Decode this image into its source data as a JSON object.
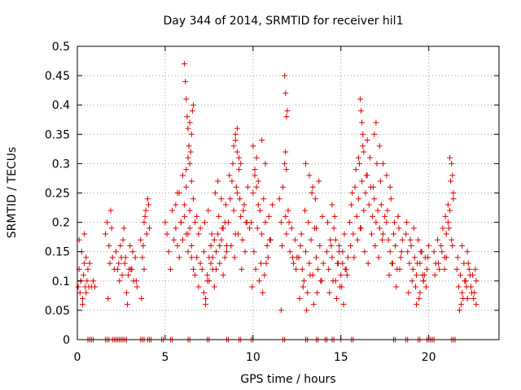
{
  "chart_data": {
    "type": "scatter",
    "title": "Day 344 of 2014, SRMTID for receiver hil1",
    "xlabel": "GPS time / hours",
    "ylabel": "SRMTID / TECUs",
    "xlim": [
      0,
      24
    ],
    "ylim": [
      0,
      0.5
    ],
    "xticks": [
      0,
      5,
      10,
      15,
      20
    ],
    "xtick_labels": [
      "0",
      "5",
      "10",
      "15",
      "20"
    ],
    "yticks": [
      0,
      0.05,
      0.1,
      0.15,
      0.2,
      0.25,
      0.3,
      0.35,
      0.4,
      0.45,
      0.5
    ],
    "ytick_labels": [
      "0",
      "0.05",
      "0.1",
      "0.15",
      "0.2",
      "0.25",
      "0.3",
      "0.35",
      "0.4",
      "0.45",
      "0.5"
    ],
    "grid": true,
    "marker": "+",
    "color": "#e00000",
    "series": [
      {
        "name": "SRMTID",
        "x": [
          0.05,
          0.1,
          0.15,
          0.2,
          0.25,
          0.3,
          0.35,
          0.4,
          0.45,
          0.5,
          0.55,
          0.6,
          0.65,
          0.7,
          0.8,
          0.9,
          1.0,
          0.1,
          0.2,
          0.3,
          0.4,
          0.5,
          1.6,
          1.7,
          1.8,
          1.9,
          2.0,
          2.1,
          1.75,
          1.85,
          1.95,
          2.2,
          2.3,
          2.4,
          2.5,
          2.6,
          2.7,
          2.8,
          2.9,
          3.0,
          3.1,
          3.2,
          3.3,
          3.4,
          2.35,
          2.55,
          2.75,
          2.95,
          3.15,
          3.35,
          2.45,
          2.65,
          2.85,
          3.05,
          3.6,
          3.7,
          3.8,
          3.9,
          4.0,
          4.1,
          3.75,
          3.85,
          3.95,
          4.05,
          3.65,
          3.8,
          5.0,
          5.1,
          5.2,
          5.3,
          5.4,
          5.5,
          5.6,
          5.7,
          5.8,
          5.9,
          6.0,
          6.1,
          6.2,
          6.3,
          6.4,
          6.5,
          6.6,
          6.7,
          6.8,
          6.9,
          7.0,
          6.1,
          6.15,
          6.2,
          6.25,
          6.3,
          6.35,
          6.4,
          6.45,
          6.5,
          6.55,
          6.6,
          6.2,
          6.3,
          6.4,
          6.5,
          5.6,
          5.8,
          6.0,
          6.2,
          6.4,
          6.6,
          6.8,
          7.0,
          5.7,
          5.9,
          6.1,
          6.3,
          6.5,
          6.7,
          6.9,
          7.1,
          7.2,
          7.3,
          7.4,
          7.5,
          7.6,
          7.7,
          7.8,
          7.9,
          8.0,
          8.1,
          8.2,
          8.3,
          8.4,
          8.5,
          7.25,
          7.45,
          7.65,
          7.85,
          8.05,
          8.25,
          8.45,
          7.2,
          7.4,
          7.6,
          7.8,
          8.0,
          8.2,
          8.4,
          7.3,
          7.5,
          7.7,
          7.9,
          8.1,
          8.3,
          8.5,
          8.6,
          8.7,
          8.8,
          8.9,
          9.0,
          9.1,
          9.2,
          9.3,
          9.4,
          9.5,
          9.6,
          9.7,
          9.8,
          8.65,
          8.85,
          9.05,
          9.25,
          9.45,
          9.65,
          8.75,
          8.95,
          9.15,
          9.35,
          9.55,
          8.9,
          9.0,
          9.1,
          9.2,
          9.3,
          9.0,
          9.1,
          9.9,
          10.0,
          10.1,
          10.2,
          10.3,
          10.4,
          10.5,
          10.6,
          10.7,
          10.8,
          10.9,
          11.0,
          11.1,
          10.05,
          10.25,
          10.45,
          10.65,
          10.85,
          10.0,
          10.1,
          10.2,
          10.3,
          10.5,
          10.7,
          9.95,
          10.15,
          10.35,
          10.55,
          10.75,
          10.95,
          11.5,
          11.6,
          11.7,
          11.8,
          11.9,
          12.0,
          12.1,
          12.2,
          12.3,
          12.4,
          12.5,
          11.65,
          11.85,
          12.05,
          12.25,
          12.45,
          11.8,
          11.85,
          11.9,
          11.95,
          11.85,
          11.9,
          11.6,
          12.6,
          12.7,
          12.8,
          12.9,
          13.0,
          13.1,
          13.2,
          13.3,
          13.4,
          13.5,
          13.6,
          13.7,
          13.8,
          13.9,
          14.0,
          12.75,
          12.95,
          13.15,
          13.35,
          13.55,
          13.75,
          13.95,
          12.65,
          12.85,
          13.05,
          13.25,
          13.45,
          13.65,
          13.85,
          13.0,
          13.2,
          13.4,
          13.6,
          14.2,
          14.3,
          14.4,
          14.5,
          14.6,
          14.7,
          14.8,
          14.9,
          15.0,
          15.1,
          15.2,
          15.3,
          15.4,
          14.25,
          14.45,
          14.65,
          14.85,
          15.05,
          15.25,
          14.35,
          14.55,
          14.75,
          14.95,
          15.15,
          15.35,
          14.5,
          14.7,
          14.9,
          15.1,
          15.5,
          15.6,
          15.7,
          15.8,
          15.9,
          16.0,
          16.1,
          16.2,
          16.3,
          16.4,
          16.5,
          16.6,
          16.7,
          16.8,
          16.9,
          17.0,
          17.1,
          17.2,
          17.3,
          17.4,
          17.5,
          15.55,
          15.75,
          15.95,
          16.15,
          16.35,
          16.55,
          16.75,
          16.95,
          17.15,
          17.35,
          15.65,
          15.85,
          16.05,
          16.25,
          16.45,
          16.65,
          16.85,
          17.05,
          17.25,
          16.1,
          16.15,
          16.2,
          16.25,
          16.3,
          16.0,
          16.5,
          16.9,
          17.0,
          17.2,
          17.4,
          17.6,
          17.8,
          17.6,
          17.7,
          17.8,
          17.9,
          18.0,
          18.1,
          18.2,
          18.3,
          18.4,
          18.5,
          17.65,
          17.85,
          18.05,
          18.25,
          18.45,
          17.75,
          17.95,
          18.15,
          18.35,
          18.7,
          18.8,
          18.9,
          19.0,
          19.1,
          19.2,
          19.3,
          19.4,
          19.5,
          19.6,
          19.7,
          19.8,
          19.9,
          20.0,
          18.75,
          18.95,
          19.15,
          19.35,
          19.55,
          19.75,
          19.95,
          18.85,
          19.05,
          19.25,
          19.45,
          19.65,
          19.85,
          19.3,
          19.5,
          19.7,
          20.3,
          20.4,
          20.5,
          20.6,
          20.7,
          20.8,
          20.9,
          21.0,
          21.1,
          21.2,
          21.3,
          21.4,
          20.35,
          20.55,
          20.75,
          20.95,
          21.15,
          21.35,
          21.2,
          21.3,
          21.35,
          21.4,
          21.25,
          21.1,
          20.9,
          21.0,
          21.6,
          21.7,
          21.8,
          21.9,
          22.0,
          22.1,
          22.2,
          22.3,
          22.4,
          22.5,
          22.6,
          22.7,
          21.65,
          21.85,
          22.05,
          22.25,
          22.45,
          22.65,
          21.75,
          21.95,
          22.15,
          22.35,
          22.55,
          22.7,
          22.2,
          21.9,
          0.6,
          0.7,
          0.8,
          0.9,
          1.6,
          1.7,
          1.8,
          2.0,
          2.1,
          2.2,
          2.3,
          2.4,
          2.5,
          2.6,
          2.7,
          2.8,
          3.6,
          3.7,
          3.8,
          4.0,
          4.1,
          4.2,
          4.8,
          4.9,
          5.3,
          5.4,
          6.3,
          6.4,
          7.4,
          7.5,
          8.5,
          8.6,
          9.2,
          9.3,
          9.9,
          10.0,
          11.7,
          11.8,
          13.0,
          13.1,
          13.6,
          13.7,
          14.1,
          14.2,
          14.5,
          14.6,
          15.0,
          15.6,
          15.7,
          18.0,
          18.1,
          18.7,
          18.8,
          19.4,
          19.5,
          19.9,
          20.0,
          20.1,
          20.2,
          20.3,
          21.3,
          21.4,
          21.5
        ],
        "y": [
          0.09,
          0.12,
          0.08,
          0.1,
          0.15,
          0.07,
          0.11,
          0.13,
          0.09,
          0.08,
          0.1,
          0.12,
          0.09,
          0.13,
          0.09,
          0.1,
          0.09,
          0.17,
          0.1,
          0.06,
          0.18,
          0.14,
          0.18,
          0.2,
          0.16,
          0.22,
          0.14,
          0.12,
          0.07,
          0.13,
          0.19,
          0.15,
          0.12,
          0.1,
          0.14,
          0.17,
          0.13,
          0.08,
          0.11,
          0.16,
          0.12,
          0.1,
          0.14,
          0.09,
          0.13,
          0.11,
          0.14,
          0.12,
          0.15,
          0.1,
          0.16,
          0.19,
          0.06,
          0.12,
          0.17,
          0.14,
          0.2,
          0.22,
          0.24,
          0.19,
          0.16,
          0.21,
          0.18,
          0.23,
          0.07,
          0.12,
          0.2,
          0.18,
          0.15,
          0.12,
          0.22,
          0.17,
          0.19,
          0.25,
          0.14,
          0.2,
          0.17,
          0.21,
          0.18,
          0.15,
          0.19,
          0.16,
          0.12,
          0.2,
          0.14,
          0.18,
          0.13,
          0.47,
          0.44,
          0.41,
          0.38,
          0.36,
          0.33,
          0.3,
          0.32,
          0.35,
          0.39,
          0.4,
          0.29,
          0.31,
          0.37,
          0.27,
          0.23,
          0.25,
          0.28,
          0.26,
          0.22,
          0.24,
          0.21,
          0.19,
          0.16,
          0.2,
          0.23,
          0.18,
          0.14,
          0.11,
          0.09,
          0.12,
          0.08,
          0.06,
          0.1,
          0.14,
          0.16,
          0.12,
          0.09,
          0.15,
          0.18,
          0.13,
          0.17,
          0.11,
          0.14,
          0.16,
          0.2,
          0.22,
          0.18,
          0.25,
          0.21,
          0.19,
          0.23,
          0.15,
          0.11,
          0.13,
          0.17,
          0.27,
          0.24,
          0.2,
          0.07,
          0.1,
          0.14,
          0.12,
          0.16,
          0.19,
          0.15,
          0.2,
          0.24,
          0.27,
          0.22,
          0.18,
          0.25,
          0.29,
          0.21,
          0.17,
          0.23,
          0.2,
          0.26,
          0.19,
          0.28,
          0.3,
          0.26,
          0.24,
          0.22,
          0.2,
          0.16,
          0.14,
          0.18,
          0.12,
          0.15,
          0.33,
          0.35,
          0.36,
          0.31,
          0.3,
          0.34,
          0.32,
          0.2,
          0.25,
          0.29,
          0.31,
          0.27,
          0.22,
          0.18,
          0.24,
          0.2,
          0.16,
          0.21,
          0.17,
          0.23,
          0.15,
          0.19,
          0.13,
          0.11,
          0.14,
          0.33,
          0.28,
          0.26,
          0.23,
          0.34,
          0.3,
          0.09,
          0.12,
          0.1,
          0.08,
          0.13,
          0.17,
          0.24,
          0.2,
          0.26,
          0.3,
          0.18,
          0.22,
          0.15,
          0.19,
          0.13,
          0.17,
          0.14,
          0.16,
          0.21,
          0.2,
          0.14,
          0.12,
          0.45,
          0.42,
          0.38,
          0.39,
          0.32,
          0.29,
          0.05,
          0.14,
          0.16,
          0.12,
          0.1,
          0.15,
          0.08,
          0.13,
          0.17,
          0.11,
          0.19,
          0.14,
          0.12,
          0.16,
          0.1,
          0.13,
          0.18,
          0.22,
          0.2,
          0.25,
          0.24,
          0.27,
          0.21,
          0.07,
          0.09,
          0.05,
          0.11,
          0.06,
          0.08,
          0.1,
          0.3,
          0.28,
          0.26,
          0.19,
          0.15,
          0.12,
          0.17,
          0.14,
          0.19,
          0.1,
          0.13,
          0.16,
          0.11,
          0.15,
          0.18,
          0.12,
          0.14,
          0.2,
          0.16,
          0.21,
          0.13,
          0.09,
          0.12,
          0.08,
          0.1,
          0.07,
          0.09,
          0.06,
          0.11,
          0.23,
          0.17,
          0.15,
          0.13,
          0.2,
          0.23,
          0.18,
          0.26,
          0.21,
          0.24,
          0.19,
          0.27,
          0.22,
          0.25,
          0.28,
          0.23,
          0.26,
          0.21,
          0.24,
          0.2,
          0.22,
          0.19,
          0.23,
          0.18,
          0.21,
          0.16,
          0.14,
          0.17,
          0.19,
          0.15,
          0.13,
          0.18,
          0.16,
          0.14,
          0.17,
          0.25,
          0.29,
          0.3,
          0.33,
          0.28,
          0.31,
          0.26,
          0.3,
          0.27,
          0.41,
          0.39,
          0.37,
          0.35,
          0.32,
          0.31,
          0.34,
          0.35,
          0.37,
          0.33,
          0.3,
          0.28,
          0.26,
          0.2,
          0.17,
          0.15,
          0.13,
          0.18,
          0.16,
          0.12,
          0.19,
          0.14,
          0.17,
          0.22,
          0.24,
          0.2,
          0.21,
          0.15,
          0.11,
          0.13,
          0.09,
          0.12,
          0.18,
          0.15,
          0.13,
          0.16,
          0.12,
          0.14,
          0.11,
          0.17,
          0.13,
          0.15,
          0.1,
          0.14,
          0.12,
          0.16,
          0.2,
          0.17,
          0.19,
          0.13,
          0.15,
          0.11,
          0.14,
          0.08,
          0.1,
          0.09,
          0.07,
          0.11,
          0.09,
          0.06,
          0.08,
          0.1,
          0.15,
          0.13,
          0.17,
          0.12,
          0.16,
          0.19,
          0.14,
          0.18,
          0.2,
          0.22,
          0.17,
          0.24,
          0.11,
          0.13,
          0.15,
          0.21,
          0.19,
          0.16,
          0.31,
          0.3,
          0.28,
          0.25,
          0.27,
          0.23,
          0.12,
          0.14,
          0.12,
          0.09,
          0.11,
          0.08,
          0.13,
          0.1,
          0.07,
          0.12,
          0.09,
          0.11,
          0.08,
          0.1,
          0.14,
          0.06,
          0.1,
          0.13,
          0.08,
          0.12,
          0.05,
          0.07,
          0.09,
          0.11,
          0.07,
          0.06,
          0.15,
          0.16,
          0.0,
          0.0,
          0.0,
          0.0,
          0.0,
          0.0,
          0.0,
          0.0,
          0.0,
          0.0,
          0.0,
          0.0,
          0.0,
          0.0,
          0.0,
          0.0,
          0.0,
          0.0,
          0.0,
          0.0,
          0.0,
          0.0,
          0.0,
          0.0,
          0.0,
          0.0,
          0.0,
          0.0,
          0.0,
          0.0,
          0.0,
          0.0,
          0.0,
          0.0,
          0.0,
          0.0,
          0.0,
          0.0,
          0.0,
          0.0,
          0.0,
          0.0,
          0.0,
          0.0,
          0.0,
          0.0,
          0.0,
          0.0,
          0.0,
          0.0,
          0.0,
          0.0,
          0.0,
          0.0,
          0.0,
          0.0,
          0.0,
          0.0,
          0.0,
          0.0,
          0.0,
          0.0,
          0.0
        ]
      }
    ]
  }
}
